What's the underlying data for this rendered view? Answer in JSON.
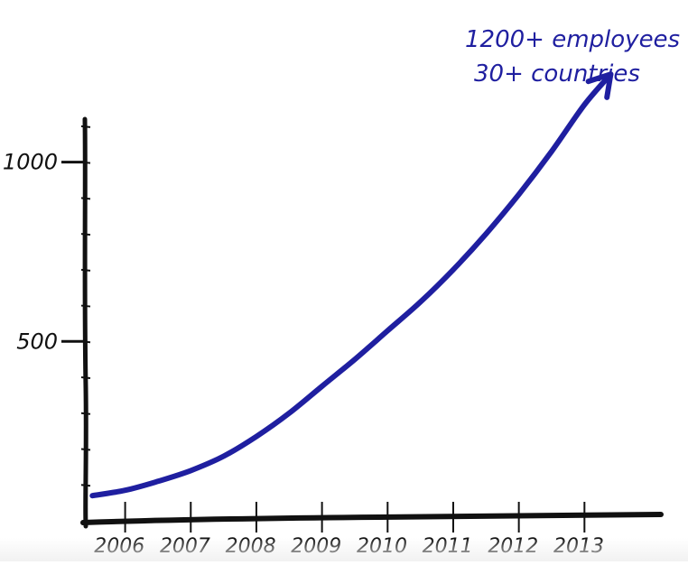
{
  "chart_data": {
    "type": "line",
    "title": "",
    "xlabel": "",
    "ylabel": "",
    "x": [
      2006,
      2006.5,
      2007,
      2007.5,
      2008,
      2008.5,
      2009,
      2009.5,
      2010,
      2010.5,
      2011,
      2011.5,
      2012,
      2012.5,
      2013,
      2013.5,
      2013.9
    ],
    "x_tick_labels": [
      "2006",
      "2007",
      "2008",
      "2009",
      "2010",
      "2011",
      "2012",
      "2013"
    ],
    "y_tick_labels": [
      "500",
      "1000"
    ],
    "y_ticks": [
      500,
      1000
    ],
    "xlim": [
      2005.9,
      2014.5
    ],
    "ylim": [
      0,
      1150
    ],
    "series": [
      {
        "values": [
          70,
          85,
          110,
          140,
          180,
          235,
          300,
          375,
          450,
          530,
          610,
          700,
          800,
          910,
          1030,
          1160,
          1245
        ]
      }
    ],
    "annotations": [
      "1200+ employees",
      "30+ countries"
    ],
    "colors": {
      "line": "#1f1fa0",
      "axis": "#111111",
      "annotation": "#1f1fa0"
    },
    "grid": false,
    "legend": "none"
  }
}
